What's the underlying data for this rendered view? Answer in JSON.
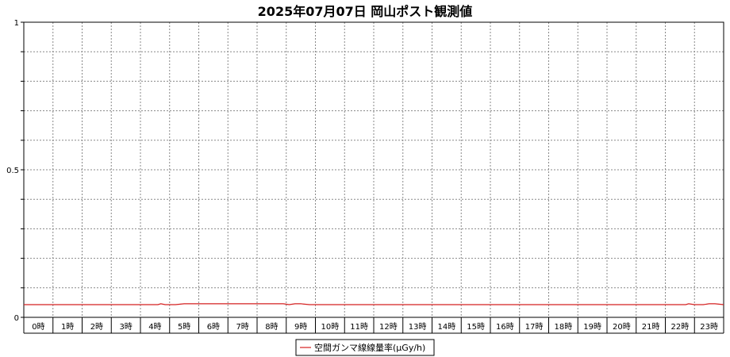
{
  "chart_data": {
    "type": "line",
    "title": "2025年07月07日 岡山ポスト観測値",
    "xlabel": "",
    "ylabel": "",
    "ylim": [
      0,
      1
    ],
    "yticks": [
      "0",
      "0.5",
      "1"
    ],
    "grid": true,
    "legend_position": "bottom-center",
    "categories": [
      "0時",
      "1時",
      "2時",
      "3時",
      "4時",
      "5時",
      "6時",
      "7時",
      "8時",
      "9時",
      "10時",
      "11時",
      "12時",
      "13時",
      "14時",
      "15時",
      "16時",
      "17時",
      "18時",
      "19時",
      "20時",
      "21時",
      "22時",
      "23時"
    ],
    "series": [
      {
        "name": "空間ガンマ線線量率(μGy/h)",
        "color": "#d42020",
        "x": [
          0,
          1,
          2,
          3,
          4,
          4.6,
          4.7,
          4.85,
          5.0,
          5.2,
          5.5,
          6,
          7,
          8,
          8.9,
          9.1,
          9.3,
          9.5,
          9.8,
          10,
          11,
          12,
          13,
          14,
          15,
          16,
          17,
          18,
          19,
          20,
          21,
          22,
          22.7,
          22.8,
          23.0,
          23.3,
          23.5,
          23.7,
          24
        ],
        "values": [
          0.043,
          0.043,
          0.043,
          0.043,
          0.043,
          0.043,
          0.046,
          0.043,
          0.043,
          0.043,
          0.046,
          0.046,
          0.046,
          0.046,
          0.046,
          0.043,
          0.046,
          0.046,
          0.043,
          0.043,
          0.043,
          0.043,
          0.043,
          0.043,
          0.043,
          0.043,
          0.043,
          0.043,
          0.043,
          0.043,
          0.043,
          0.043,
          0.043,
          0.046,
          0.043,
          0.043,
          0.046,
          0.046,
          0.043
        ]
      }
    ]
  }
}
